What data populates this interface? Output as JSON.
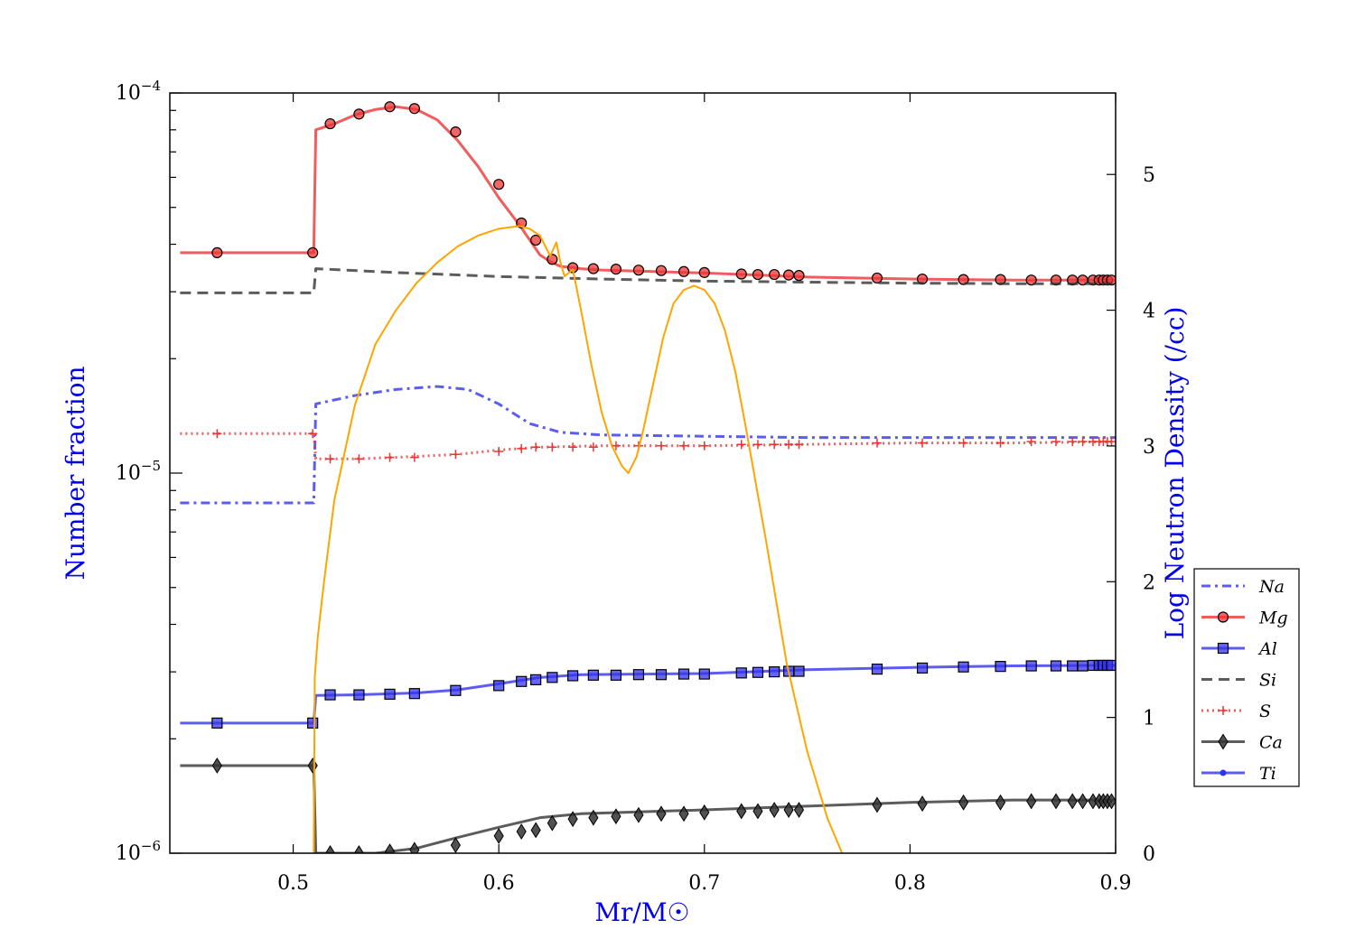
{
  "chart_data": {
    "type": "line",
    "xlabel": "Mr/M☉",
    "ylabel": "Number fraction",
    "y2label": "Log Neutron Density (/cc)",
    "xlim": [
      0.44,
      0.9
    ],
    "ylim": [
      1e-06,
      0.0001
    ],
    "y2lim": [
      0,
      5.6
    ],
    "yscale": "log",
    "xticks": [
      0.5,
      0.6,
      0.7,
      0.8,
      0.9
    ],
    "xtick_labels": [
      "0.5",
      "0.6",
      "0.7",
      "0.8",
      "0.9"
    ],
    "ytick_labels": [
      {
        "value": 0.0001,
        "base": "10",
        "exp": "−4"
      },
      {
        "value": 1e-05,
        "base": "10",
        "exp": "−5"
      },
      {
        "value": 1e-06,
        "base": "10",
        "exp": "−6"
      }
    ],
    "y2ticks": [
      0,
      1,
      2,
      3,
      4,
      5
    ],
    "y2tick_labels": [
      "0",
      "1",
      "2",
      "3",
      "4",
      "5"
    ],
    "grid": false,
    "legend_position": "right",
    "colors": {
      "blue": "#3333ee",
      "red": "#ee3333",
      "gray": "#333333",
      "orange": "#ffa500",
      "label_blue": "#0000ee"
    },
    "series": [
      {
        "name": "Na",
        "color": "#3333ee",
        "dash": "10,5,3,5",
        "marker": "none",
        "axis": "left",
        "x": [
          0.445,
          0.51,
          0.511,
          0.53,
          0.55,
          0.57,
          0.585,
          0.6,
          0.615,
          0.63,
          0.65,
          0.7,
          0.75,
          0.8,
          0.85,
          0.9
        ],
        "y": [
          8.35e-06,
          8.35e-06,
          1.52e-05,
          1.6e-05,
          1.66e-05,
          1.69e-05,
          1.66e-05,
          1.52e-05,
          1.35e-05,
          1.28e-05,
          1.26e-05,
          1.25e-05,
          1.24e-05,
          1.24e-05,
          1.24e-05,
          1.24e-05
        ]
      },
      {
        "name": "Mg",
        "color": "#ee3333",
        "dash": "",
        "marker": "circle",
        "axis": "left",
        "x": [
          0.445,
          0.51,
          0.511,
          0.52,
          0.53,
          0.54,
          0.55,
          0.56,
          0.57,
          0.58,
          0.59,
          0.6,
          0.61,
          0.62,
          0.625,
          0.63,
          0.64,
          0.65,
          0.7,
          0.75,
          0.8,
          0.85,
          0.9
        ],
        "y": [
          3.8e-05,
          3.8e-05,
          8e-05,
          8.3e-05,
          8.75e-05,
          9.05e-05,
          9.2e-05,
          9.05e-05,
          8.5e-05,
          7.5e-05,
          6.4e-05,
          5.3e-05,
          4.5e-05,
          3.75e-05,
          3.6e-05,
          3.5e-05,
          3.45e-05,
          3.42e-05,
          3.36e-05,
          3.28e-05,
          3.24e-05,
          3.22e-05,
          3.22e-05
        ],
        "markers_x": [
          0.463,
          0.5095,
          0.518,
          0.532,
          0.547,
          0.559,
          0.579,
          0.6,
          0.611,
          0.618,
          0.626,
          0.636,
          0.646,
          0.657,
          0.668,
          0.679,
          0.69,
          0.7,
          0.718,
          0.726,
          0.734,
          0.741,
          0.746,
          0.784,
          0.806,
          0.826,
          0.844,
          0.859,
          0.871,
          0.879,
          0.884,
          0.889,
          0.892,
          0.894,
          0.896,
          0.898
        ],
        "markers_y": [
          3.8e-05,
          3.8e-05,
          8.3e-05,
          8.8e-05,
          9.2e-05,
          9.1e-05,
          7.9e-05,
          5.75e-05,
          4.55e-05,
          4.1e-05,
          3.65e-05,
          3.47e-05,
          3.45e-05,
          3.44e-05,
          3.42e-05,
          3.41e-05,
          3.39e-05,
          3.37e-05,
          3.34e-05,
          3.33e-05,
          3.33e-05,
          3.32e-05,
          3.31e-05,
          3.26e-05,
          3.24e-05,
          3.23e-05,
          3.23e-05,
          3.22e-05,
          3.22e-05,
          3.22e-05,
          3.22e-05,
          3.22e-05,
          3.22e-05,
          3.22e-05,
          3.22e-05,
          3.22e-05
        ]
      },
      {
        "name": "Al",
        "color": "#3333ee",
        "dash": "",
        "marker": "square",
        "axis": "left",
        "x": [
          0.445,
          0.51,
          0.511,
          0.53,
          0.56,
          0.58,
          0.6,
          0.62,
          0.64,
          0.7,
          0.75,
          0.8,
          0.85,
          0.9
        ],
        "y": [
          2.2e-06,
          2.2e-06,
          2.6e-06,
          2.61e-06,
          2.64e-06,
          2.69e-06,
          2.79e-06,
          2.9e-06,
          2.95e-06,
          2.97e-06,
          3.04e-06,
          3.08e-06,
          3.11e-06,
          3.12e-06
        ],
        "markers_x": [
          0.463,
          0.5095,
          0.518,
          0.532,
          0.547,
          0.559,
          0.579,
          0.6,
          0.611,
          0.618,
          0.626,
          0.636,
          0.646,
          0.657,
          0.668,
          0.679,
          0.69,
          0.7,
          0.718,
          0.726,
          0.734,
          0.741,
          0.746,
          0.784,
          0.806,
          0.826,
          0.844,
          0.859,
          0.871,
          0.879,
          0.884,
          0.889,
          0.892,
          0.894,
          0.896,
          0.898
        ],
        "markers_y": [
          2.2e-06,
          2.2e-06,
          2.61e-06,
          2.61e-06,
          2.62e-06,
          2.63e-06,
          2.68e-06,
          2.76e-06,
          2.83e-06,
          2.86e-06,
          2.9e-06,
          2.93e-06,
          2.94e-06,
          2.94e-06,
          2.95e-06,
          2.95e-06,
          2.96e-06,
          2.96e-06,
          2.98e-06,
          2.99e-06,
          3e-06,
          3.01e-06,
          3.01e-06,
          3.05e-06,
          3.07e-06,
          3.09e-06,
          3.1e-06,
          3.11e-06,
          3.11e-06,
          3.11e-06,
          3.11e-06,
          3.12e-06,
          3.12e-06,
          3.12e-06,
          3.12e-06,
          3.12e-06
        ]
      },
      {
        "name": "Si",
        "color": "#333333",
        "dash": "12,7",
        "marker": "none",
        "axis": "left",
        "x": [
          0.445,
          0.51,
          0.511,
          0.55,
          0.6,
          0.65,
          0.7,
          0.75,
          0.8,
          0.85,
          0.9
        ],
        "y": [
          2.98e-05,
          2.98e-05,
          3.45e-05,
          3.37e-05,
          3.29e-05,
          3.24e-05,
          3.2e-05,
          3.18e-05,
          3.16e-05,
          3.15e-05,
          3.15e-05
        ]
      },
      {
        "name": "S",
        "color": "#ee3333",
        "dash": "2,4",
        "marker": "plus",
        "axis": "left",
        "x": [
          0.445,
          0.51,
          0.511,
          0.53,
          0.55,
          0.58,
          0.6,
          0.62,
          0.65,
          0.7,
          0.75,
          0.8,
          0.85,
          0.9
        ],
        "y": [
          1.27e-05,
          1.27e-05,
          1.09e-05,
          1.09e-05,
          1.1e-05,
          1.12e-05,
          1.15e-05,
          1.17e-05,
          1.18e-05,
          1.18e-05,
          1.19e-05,
          1.2e-05,
          1.2e-05,
          1.21e-05
        ],
        "markers_x": [
          0.463,
          0.5095,
          0.518,
          0.532,
          0.547,
          0.559,
          0.579,
          0.6,
          0.611,
          0.618,
          0.626,
          0.636,
          0.646,
          0.657,
          0.668,
          0.679,
          0.69,
          0.7,
          0.718,
          0.726,
          0.734,
          0.741,
          0.746,
          0.784,
          0.806,
          0.826,
          0.844,
          0.859,
          0.871,
          0.879,
          0.884,
          0.889,
          0.892,
          0.894,
          0.896,
          0.898
        ],
        "markers_y": [
          1.27e-05,
          1.27e-05,
          1.09e-05,
          1.09e-05,
          1.1e-05,
          1.1e-05,
          1.12e-05,
          1.14e-05,
          1.16e-05,
          1.17e-05,
          1.17e-05,
          1.17e-05,
          1.17e-05,
          1.18e-05,
          1.18e-05,
          1.18e-05,
          1.18e-05,
          1.18e-05,
          1.19e-05,
          1.19e-05,
          1.19e-05,
          1.19e-05,
          1.19e-05,
          1.2e-05,
          1.2e-05,
          1.2e-05,
          1.2e-05,
          1.21e-05,
          1.21e-05,
          1.21e-05,
          1.21e-05,
          1.21e-05,
          1.21e-05,
          1.21e-05,
          1.21e-05,
          1.21e-05
        ]
      },
      {
        "name": "Ca",
        "color": "#333333",
        "dash": "",
        "marker": "diamond",
        "axis": "left",
        "x": [
          0.445,
          0.51,
          0.511,
          0.54,
          0.56,
          0.58,
          0.6,
          0.62,
          0.64,
          0.7,
          0.75,
          0.8,
          0.85,
          0.9
        ],
        "y": [
          1.7e-06,
          1.7e-06,
          1e-06,
          1e-06,
          1.03e-06,
          1.1e-06,
          1.17e-06,
          1.24e-06,
          1.27e-06,
          1.3e-06,
          1.33e-06,
          1.36e-06,
          1.38e-06,
          1.38e-06
        ],
        "markers_x": [
          0.463,
          0.5095,
          0.518,
          0.532,
          0.547,
          0.559,
          0.579,
          0.6,
          0.611,
          0.618,
          0.626,
          0.636,
          0.646,
          0.657,
          0.668,
          0.679,
          0.69,
          0.7,
          0.718,
          0.726,
          0.734,
          0.741,
          0.746,
          0.784,
          0.806,
          0.826,
          0.844,
          0.859,
          0.871,
          0.879,
          0.884,
          0.889,
          0.892,
          0.894,
          0.896,
          0.898
        ],
        "markers_y": [
          1.7e-06,
          1.7e-06,
          1e-06,
          1e-06,
          1.01e-06,
          1.02e-06,
          1.05e-06,
          1.11e-06,
          1.14e-06,
          1.15e-06,
          1.2e-06,
          1.23e-06,
          1.24e-06,
          1.25e-06,
          1.26e-06,
          1.27e-06,
          1.27e-06,
          1.28e-06,
          1.29e-06,
          1.29e-06,
          1.3e-06,
          1.3e-06,
          1.3e-06,
          1.34e-06,
          1.35e-06,
          1.36e-06,
          1.36e-06,
          1.37e-06,
          1.37e-06,
          1.37e-06,
          1.37e-06,
          1.37e-06,
          1.37e-06,
          1.37e-06,
          1.37e-06,
          1.37e-06
        ]
      },
      {
        "name": "Ti",
        "color": "#3333ee",
        "dash": "",
        "marker": "point",
        "axis": "left",
        "x": [],
        "y": []
      },
      {
        "color": "#ffa500",
        "dash": "",
        "marker": "none",
        "axis": "right",
        "x": [
          0.51,
          0.5105,
          0.512,
          0.515,
          0.52,
          0.53,
          0.54,
          0.55,
          0.56,
          0.57,
          0.58,
          0.59,
          0.6,
          0.605,
          0.61,
          0.615,
          0.62,
          0.625,
          0.628,
          0.63,
          0.632,
          0.636,
          0.64,
          0.645,
          0.65,
          0.655,
          0.66,
          0.663,
          0.667,
          0.67,
          0.675,
          0.68,
          0.685,
          0.69,
          0.695,
          0.7,
          0.705,
          0.71,
          0.715,
          0.72,
          0.73,
          0.74,
          0.75,
          0.76,
          0.767
        ],
        "y": [
          0.0,
          1.3,
          1.6,
          2.0,
          2.6,
          3.3,
          3.75,
          4.0,
          4.2,
          4.35,
          4.47,
          4.55,
          4.6,
          4.61,
          4.62,
          4.6,
          4.55,
          4.4,
          4.5,
          4.35,
          4.25,
          4.3,
          4.0,
          3.6,
          3.25,
          3.0,
          2.85,
          2.8,
          2.92,
          3.1,
          3.45,
          3.8,
          4.05,
          4.15,
          4.18,
          4.15,
          4.05,
          3.85,
          3.55,
          3.15,
          2.3,
          1.4,
          0.75,
          0.25,
          0.0
        ]
      }
    ]
  }
}
